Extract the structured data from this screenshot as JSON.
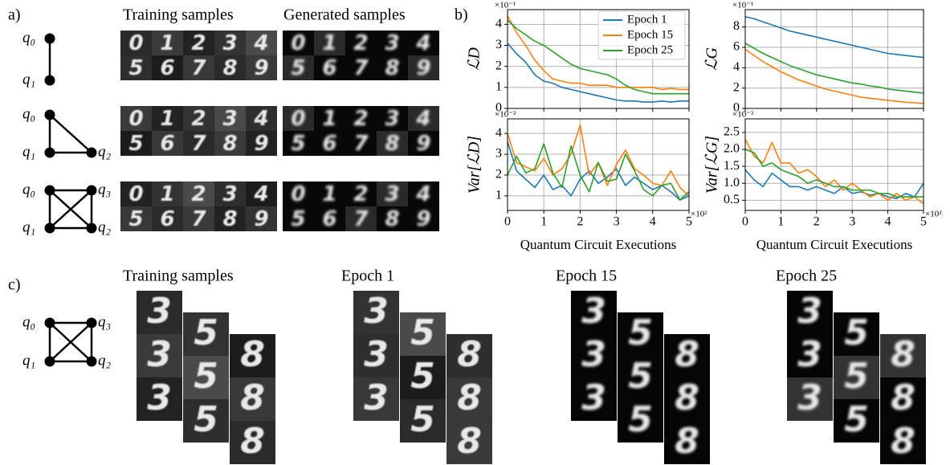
{
  "panel_labels": [
    "a)",
    "b)",
    "c)"
  ],
  "panel_a": {
    "column_titles": [
      "Training samples",
      "Generated samples"
    ],
    "graphs": [
      {
        "nodes": [
          "q₀",
          "q₁"
        ]
      },
      {
        "nodes": [
          "q₀",
          "q₁",
          "q₂"
        ]
      },
      {
        "nodes": [
          "q₀",
          "q₃",
          "q₁",
          "q₂"
        ]
      }
    ],
    "digit_rows": [
      [
        "0",
        "1",
        "2",
        "3",
        "4"
      ],
      [
        "5",
        "6",
        "7",
        "8",
        "9"
      ]
    ]
  },
  "chart_data": [
    {
      "type": "line",
      "ylabel": "ℒD",
      "y_exponent": "×10⁻¹",
      "x": [
        0,
        0.25,
        0.5,
        0.75,
        1,
        1.25,
        1.5,
        1.75,
        2,
        2.25,
        2.5,
        2.75,
        3,
        3.25,
        3.5,
        3.75,
        4,
        4.25,
        4.5,
        4.75,
        5
      ],
      "xlim": [
        0,
        5
      ],
      "xticks": [
        0,
        1,
        2,
        3,
        4,
        5
      ],
      "show_xtick_labels": false,
      "ylim": [
        0,
        4.7
      ],
      "yticks": [
        0,
        1,
        2,
        3,
        4
      ],
      "grid": true,
      "legend": "upper right",
      "series": [
        {
          "name": "Epoch 1",
          "color": "#1f77b4",
          "values": [
            3.1,
            2.6,
            2.2,
            1.6,
            1.3,
            1.2,
            1.0,
            0.9,
            0.8,
            0.7,
            0.6,
            0.5,
            0.4,
            0.35,
            0.35,
            0.3,
            0.3,
            0.35,
            0.3,
            0.35,
            0.35
          ]
        },
        {
          "name": "Epoch 15",
          "color": "#ff7f0e",
          "values": [
            4.4,
            3.6,
            3.0,
            2.3,
            1.8,
            1.4,
            1.3,
            1.2,
            1.2,
            1.1,
            1.1,
            1.1,
            1.0,
            1.0,
            1.0,
            1.0,
            1.0,
            0.9,
            0.95,
            0.9,
            0.9
          ]
        },
        {
          "name": "Epoch 25",
          "color": "#2ca02c",
          "values": [
            4.2,
            3.8,
            3.5,
            3.2,
            3.0,
            2.7,
            2.4,
            2.1,
            1.9,
            1.8,
            1.7,
            1.6,
            1.4,
            1.1,
            0.9,
            0.8,
            0.7,
            0.7,
            0.7,
            0.7,
            0.7
          ]
        }
      ]
    },
    {
      "type": "line",
      "ylabel": "ℒG",
      "y_exponent": "×10⁻¹",
      "x": [
        0,
        0.25,
        0.5,
        0.75,
        1,
        1.25,
        1.5,
        1.75,
        2,
        2.25,
        2.5,
        2.75,
        3,
        3.25,
        3.5,
        3.75,
        4,
        4.25,
        4.5,
        4.75,
        5
      ],
      "xlim": [
        0,
        5
      ],
      "xticks": [
        0,
        1,
        2,
        3,
        4,
        5
      ],
      "show_xtick_labels": false,
      "ylim": [
        0,
        9.7
      ],
      "yticks": [
        0,
        2,
        4,
        6,
        8
      ],
      "grid": true,
      "series": [
        {
          "color": "#1f77b4",
          "values": [
            9.0,
            8.8,
            8.5,
            8.2,
            7.9,
            7.6,
            7.4,
            7.2,
            7.0,
            6.8,
            6.6,
            6.4,
            6.2,
            6.0,
            5.8,
            5.6,
            5.4,
            5.3,
            5.2,
            5.1,
            5.0
          ]
        },
        {
          "color": "#ff7f0e",
          "values": [
            5.8,
            5.2,
            4.6,
            4.1,
            3.6,
            3.2,
            2.8,
            2.5,
            2.2,
            1.9,
            1.7,
            1.5,
            1.3,
            1.1,
            1.0,
            0.9,
            0.8,
            0.7,
            0.6,
            0.55,
            0.5
          ]
        },
        {
          "color": "#2ca02c",
          "values": [
            6.4,
            5.9,
            5.4,
            5.0,
            4.6,
            4.2,
            3.9,
            3.6,
            3.3,
            3.1,
            2.9,
            2.7,
            2.5,
            2.4,
            2.2,
            2.1,
            1.9,
            1.8,
            1.7,
            1.6,
            1.5
          ]
        }
      ]
    },
    {
      "type": "line",
      "ylabel": "Var[ℒD]",
      "y_exponent": "×10⁻²",
      "xlabel": "Quantum Circuit Executions",
      "x_exponent": "×10²",
      "x": [
        0,
        0.25,
        0.5,
        0.75,
        1,
        1.25,
        1.5,
        1.75,
        2,
        2.25,
        2.5,
        2.75,
        3,
        3.25,
        3.5,
        3.75,
        4,
        4.25,
        4.5,
        4.75,
        5
      ],
      "xlim": [
        0,
        5
      ],
      "xticks": [
        0,
        1,
        2,
        3,
        4,
        5
      ],
      "show_xtick_labels": true,
      "ylim": [
        0.3,
        4.7
      ],
      "yticks": [
        1,
        2,
        3,
        4
      ],
      "grid": true,
      "series": [
        {
          "color": "#1f77b4",
          "values": [
            3.6,
            2.2,
            1.8,
            1.4,
            2.0,
            1.3,
            1.5,
            1.0,
            1.8,
            2.2,
            1.6,
            1.9,
            2.3,
            1.5,
            1.9,
            1.6,
            1.3,
            1.5,
            1.2,
            0.8,
            1.0
          ]
        },
        {
          "color": "#ff7f0e",
          "values": [
            4.0,
            2.6,
            2.4,
            2.2,
            2.8,
            2.0,
            2.3,
            3.0,
            4.4,
            2.0,
            2.6,
            1.5,
            2.5,
            3.2,
            2.3,
            2.0,
            1.6,
            1.5,
            2.2,
            1.4,
            1.0
          ]
        },
        {
          "color": "#2ca02c",
          "values": [
            2.0,
            2.9,
            2.1,
            2.3,
            3.5,
            2.1,
            1.4,
            3.4,
            2.0,
            1.2,
            2.6,
            1.7,
            1.8,
            3.0,
            2.2,
            1.3,
            1.0,
            1.5,
            1.6,
            0.8,
            1.2
          ]
        }
      ]
    },
    {
      "type": "line",
      "ylabel": "Var[ℒG]",
      "y_exponent": "×10⁻²",
      "xlabel": "Quantum Circuit Executions",
      "x_exponent": "×10²",
      "x": [
        0,
        0.25,
        0.5,
        0.75,
        1,
        1.25,
        1.5,
        1.75,
        2,
        2.25,
        2.5,
        2.75,
        3,
        3.25,
        3.5,
        3.75,
        4,
        4.25,
        4.5,
        4.75,
        5
      ],
      "xlim": [
        0,
        5
      ],
      "xticks": [
        0,
        1,
        2,
        3,
        4,
        5
      ],
      "show_xtick_labels": true,
      "ylim": [
        0.2,
        2.9
      ],
      "yticks": [
        0.5,
        {
          "value": 1,
          "label": "1.0"
        },
        1.5,
        {
          "value": 2,
          "label": "2.0"
        },
        2.5
      ],
      "grid": true,
      "series": [
        {
          "color": "#1f77b4",
          "values": [
            1.4,
            1.1,
            0.9,
            1.3,
            1.1,
            0.9,
            0.9,
            0.8,
            0.9,
            0.8,
            0.7,
            0.9,
            0.7,
            0.75,
            0.65,
            0.7,
            0.6,
            0.55,
            0.7,
            0.6,
            1.0
          ]
        },
        {
          "color": "#ff7f0e",
          "values": [
            2.3,
            1.8,
            1.6,
            2.2,
            1.6,
            1.6,
            1.3,
            1.4,
            1.2,
            0.9,
            1.1,
            0.8,
            1.0,
            0.8,
            0.6,
            0.7,
            0.5,
            0.7,
            0.5,
            0.6,
            0.4
          ]
        },
        {
          "color": "#2ca02c",
          "values": [
            2.0,
            1.9,
            1.5,
            1.6,
            1.4,
            1.3,
            1.2,
            1.0,
            1.1,
            1.0,
            0.9,
            0.9,
            0.8,
            0.8,
            0.8,
            0.7,
            0.7,
            0.6,
            0.6,
            0.6,
            0.6
          ]
        }
      ]
    }
  ],
  "panel_c": {
    "column_titles": [
      "Training samples",
      "Epoch 1",
      "Epoch 15",
      "Epoch 25"
    ],
    "nodes": [
      "q₀",
      "q₃",
      "q₁",
      "q₂"
    ],
    "digit_columns": [
      "3",
      "5",
      "8"
    ]
  }
}
